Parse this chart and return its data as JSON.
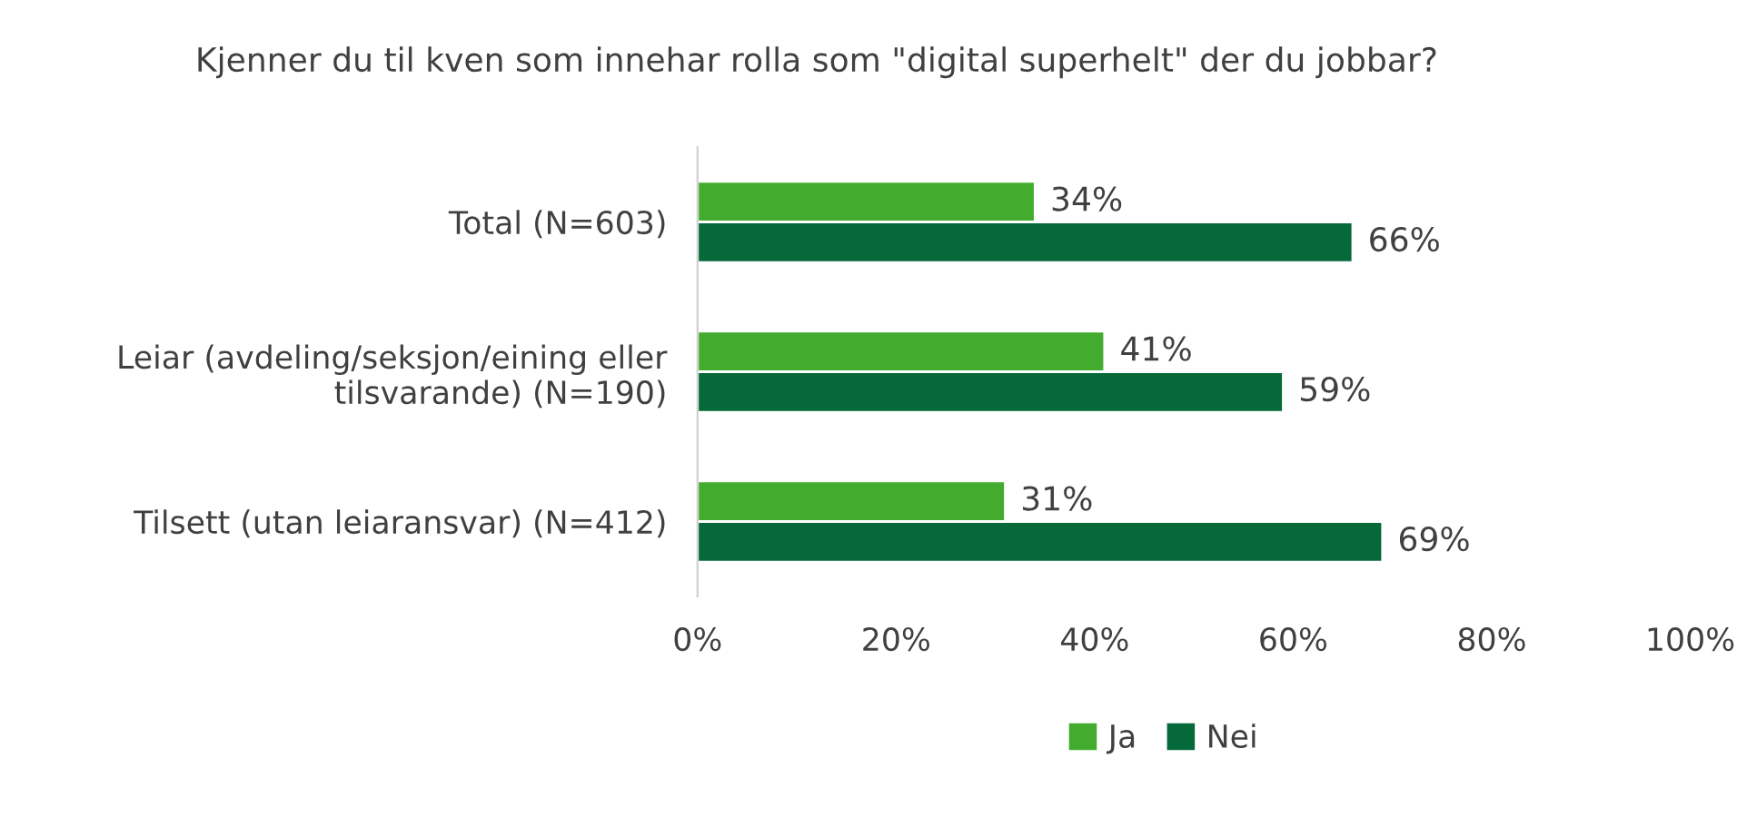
{
  "chart_data": {
    "type": "bar",
    "orientation": "horizontal",
    "title": "Kjenner du til kven som innehar rolla som \"digital superhelt\" der du jobbar?",
    "categories": [
      "Total (N=603)",
      "Leiar (avdeling/seksjon/eining eller tilsvarande) (N=190)",
      "Tilsett (utan leiaransvar) (N=412)"
    ],
    "series": [
      {
        "name": "Ja",
        "color": "#43ac2e",
        "values": [
          34,
          41,
          31
        ],
        "value_labels": [
          "34%",
          "41%",
          "31%"
        ]
      },
      {
        "name": "Nei",
        "color": "#05693a",
        "values": [
          66,
          59,
          69
        ],
        "value_labels": [
          "66%",
          "59%",
          "69%"
        ]
      }
    ],
    "xlim": [
      0,
      100
    ],
    "xticks": [
      {
        "value": 0,
        "label": "0%"
      },
      {
        "value": 20,
        "label": "20%"
      },
      {
        "value": 40,
        "label": "40%"
      },
      {
        "value": 60,
        "label": "60%"
      },
      {
        "value": 80,
        "label": "80%"
      },
      {
        "value": 100,
        "label": "100%"
      }
    ],
    "grid": false,
    "legend": "bottom"
  }
}
